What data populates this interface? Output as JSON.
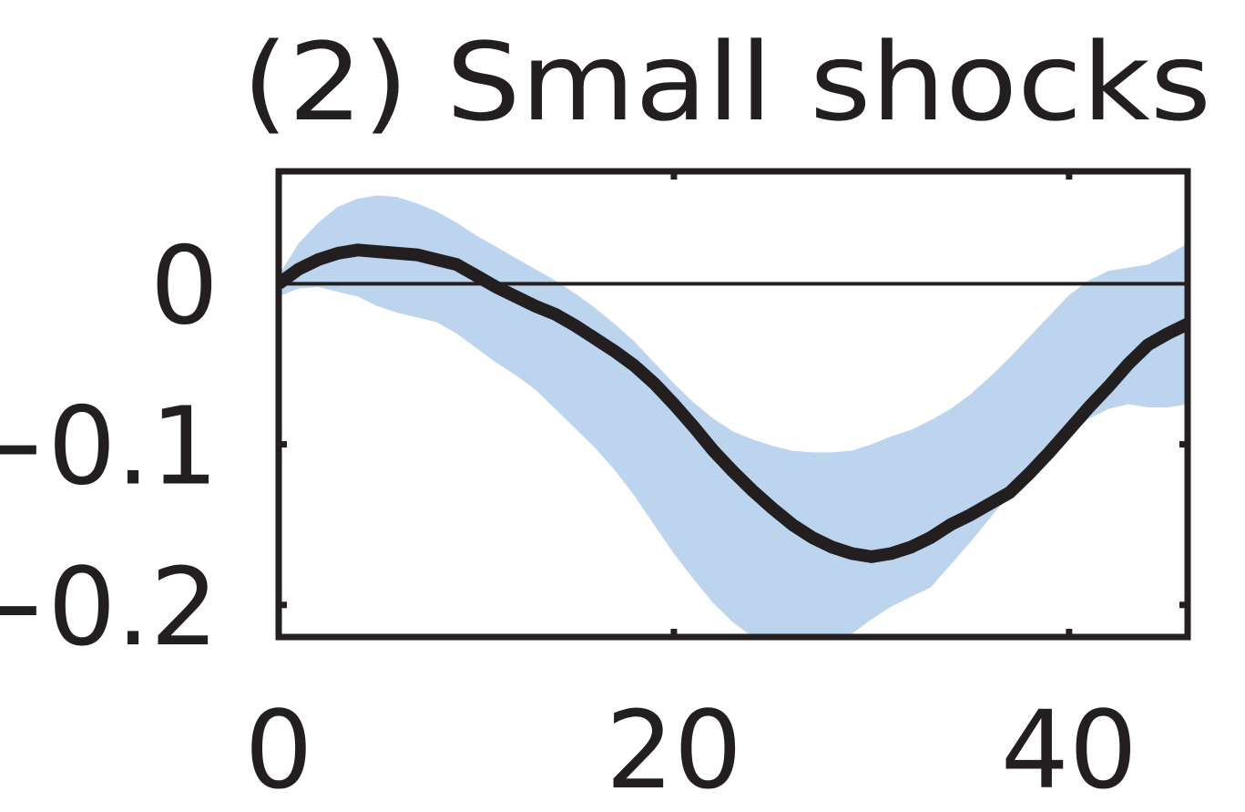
{
  "chart_data": {
    "type": "line",
    "title": "(2) Small shocks",
    "xlabel": "",
    "ylabel": "",
    "xlim": [
      0,
      46
    ],
    "ylim": [
      -0.22,
      0.07
    ],
    "x_ticks": [
      0,
      20,
      40
    ],
    "x_tick_labels": [
      "0",
      "20",
      "40"
    ],
    "y_ticks": [
      0,
      -0.1,
      -0.2
    ],
    "y_tick_labels": [
      "0",
      "−0.1",
      "−0.2"
    ],
    "zero_line": true,
    "grid": false,
    "legend": "none",
    "series": [
      {
        "x": [
          0,
          1,
          2,
          3,
          4,
          5,
          6,
          7,
          8,
          9,
          10,
          11,
          12,
          13,
          14,
          15,
          16,
          17,
          18,
          19,
          20,
          21,
          22,
          23,
          24,
          25,
          26,
          27,
          28,
          29,
          30,
          31,
          32,
          33,
          34,
          35,
          36,
          37,
          38,
          39,
          40,
          41,
          42,
          43,
          44,
          45,
          46
        ],
        "values": [
          0.0,
          0.009,
          0.015,
          0.019,
          0.021,
          0.02,
          0.019,
          0.018,
          0.015,
          0.012,
          0.005,
          -0.002,
          -0.008,
          -0.014,
          -0.019,
          -0.026,
          -0.034,
          -0.042,
          -0.051,
          -0.062,
          -0.075,
          -0.089,
          -0.104,
          -0.117,
          -0.129,
          -0.14,
          -0.15,
          -0.158,
          -0.164,
          -0.168,
          -0.17,
          -0.168,
          -0.164,
          -0.158,
          -0.15,
          -0.144,
          -0.137,
          -0.13,
          -0.118,
          -0.105,
          -0.091,
          -0.077,
          -0.064,
          -0.05,
          -0.038,
          -0.031,
          -0.025
        ]
      }
    ],
    "band": {
      "x": [
        0,
        1,
        2,
        3,
        4,
        5,
        6,
        7,
        8,
        9,
        10,
        11,
        12,
        13,
        14,
        15,
        16,
        17,
        18,
        19,
        20,
        21,
        22,
        23,
        24,
        25,
        26,
        27,
        28,
        29,
        30,
        31,
        32,
        33,
        34,
        35,
        36,
        37,
        38,
        39,
        40,
        41,
        42,
        43,
        44,
        45,
        46
      ],
      "upper": [
        0.005,
        0.025,
        0.038,
        0.048,
        0.053,
        0.055,
        0.054,
        0.05,
        0.045,
        0.038,
        0.03,
        0.023,
        0.016,
        0.009,
        0.002,
        -0.006,
        -0.015,
        -0.025,
        -0.036,
        -0.049,
        -0.062,
        -0.074,
        -0.084,
        -0.092,
        -0.097,
        -0.101,
        -0.104,
        -0.105,
        -0.105,
        -0.104,
        -0.1,
        -0.095,
        -0.091,
        -0.085,
        -0.078,
        -0.069,
        -0.058,
        -0.046,
        -0.033,
        -0.02,
        -0.007,
        0.002,
        0.008,
        0.01,
        0.012,
        0.018,
        0.025
      ],
      "lower": [
        -0.008,
        -0.003,
        -0.002,
        -0.005,
        -0.008,
        -0.014,
        -0.018,
        -0.021,
        -0.024,
        -0.031,
        -0.04,
        -0.049,
        -0.057,
        -0.066,
        -0.078,
        -0.09,
        -0.102,
        -0.116,
        -0.132,
        -0.15,
        -0.168,
        -0.184,
        -0.199,
        -0.211,
        -0.22,
        -0.226,
        -0.228,
        -0.228,
        -0.225,
        -0.218,
        -0.209,
        -0.201,
        -0.195,
        -0.189,
        -0.175,
        -0.161,
        -0.146,
        -0.131,
        -0.116,
        -0.106,
        -0.095,
        -0.084,
        -0.078,
        -0.075,
        -0.077,
        -0.077,
        -0.075
      ]
    },
    "colors": {
      "line": "#231f20",
      "band": "#bcd4ee",
      "axis": "#231f20"
    }
  }
}
